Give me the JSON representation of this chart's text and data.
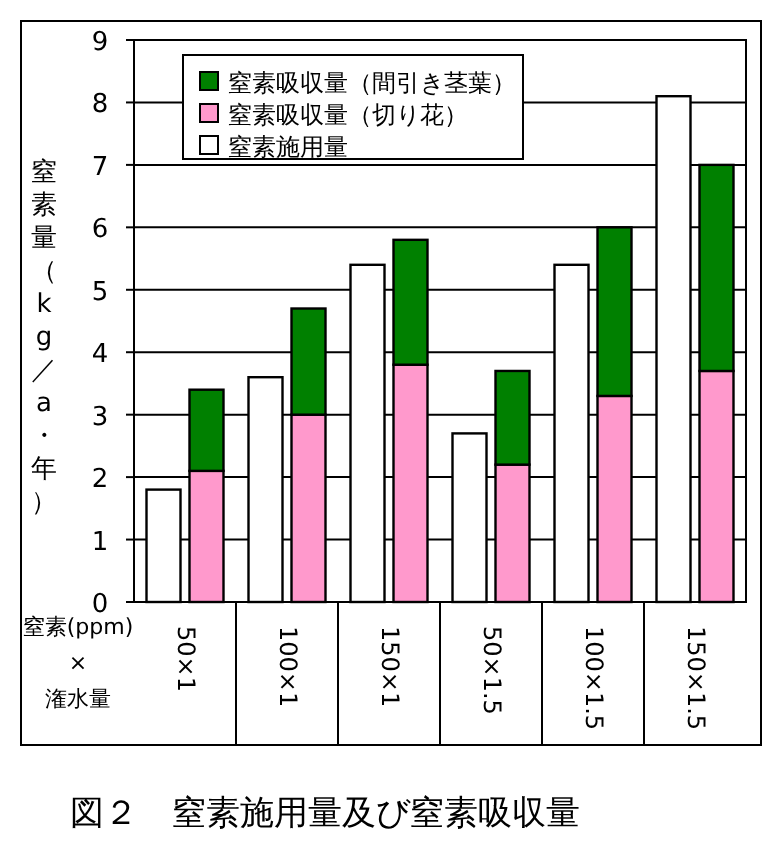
{
  "chart_data": {
    "type": "bar",
    "title": "図２　窒素施用量及び窒素吸収量",
    "ylabel": "窒素量（kg／a・年）",
    "xlabel": "窒素(ppm)\n×\n潅水量",
    "categories": [
      "50×1",
      "100×1",
      "150×1",
      "50×1.5",
      "100×1.5",
      "150×1.5"
    ],
    "series": [
      {
        "name": "窒素施用量",
        "color": "#ffffff",
        "values": [
          1.8,
          3.6,
          5.4,
          2.7,
          5.4,
          8.1
        ]
      },
      {
        "name": "窒素吸収量（切り花）",
        "color": "#ff99cc",
        "base": [
          0,
          0,
          0,
          0,
          0,
          0
        ],
        "values": [
          2.1,
          3.0,
          3.8,
          2.2,
          3.3,
          3.7
        ]
      },
      {
        "name": "窒素吸収量（間引き茎葉）",
        "color": "#008000",
        "base": [
          2.1,
          3.0,
          3.8,
          2.2,
          3.3,
          3.7
        ],
        "values": [
          1.3,
          1.7,
          2.0,
          1.5,
          2.7,
          3.3
        ]
      }
    ],
    "ylim": [
      0,
      9
    ],
    "yticks": [
      0,
      1,
      2,
      3,
      4,
      5,
      6,
      7,
      8,
      9
    ],
    "grid": "y",
    "legend": "top left"
  }
}
